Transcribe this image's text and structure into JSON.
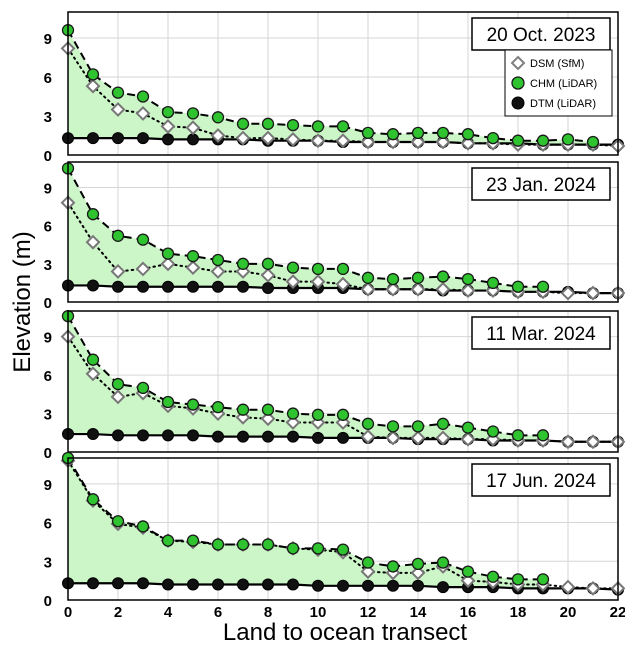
{
  "figure": {
    "ylabel": "Elevation (m)",
    "xlabel": "Land to ocean transect",
    "fill_color": "#ccf5c8",
    "grid_color": "#d6d6d6"
  },
  "legend": [
    {
      "name": "DSM (SfM)",
      "marker": "open-diamond",
      "color": "#808080"
    },
    {
      "name": "CHM (LiDAR)",
      "marker": "green-circle",
      "color": "#2fc42f"
    },
    {
      "name": "DTM (LiDAR)",
      "marker": "black-circle",
      "color": "#000000"
    }
  ],
  "chart_data": [
    {
      "type": "line",
      "date_label": "20 Oct. 2023",
      "xlim": [
        0,
        22
      ],
      "ylim": [
        0,
        11
      ],
      "x_ticks": [
        0,
        2,
        4,
        6,
        8,
        10,
        12,
        14,
        16,
        18,
        20,
        22
      ],
      "y_ticks": [
        0,
        3,
        6,
        9
      ],
      "series": [
        {
          "name": "DSM (SfM)",
          "x": [
            0,
            1,
            2,
            3,
            4,
            5,
            6,
            7,
            8,
            9,
            10,
            11,
            12,
            13,
            14,
            15,
            16,
            17,
            18,
            19,
            20,
            21,
            22
          ],
          "values": [
            8.2,
            5.3,
            3.5,
            3.2,
            2.2,
            2.1,
            1.5,
            1.3,
            1.3,
            1.2,
            1.1,
            1.1,
            1.0,
            1.0,
            1.0,
            1.0,
            0.9,
            0.9,
            0.8,
            0.8,
            0.8,
            0.8,
            0.7
          ]
        },
        {
          "name": "CHM (LiDAR)",
          "x": [
            0,
            1,
            2,
            3,
            4,
            5,
            6,
            7,
            8,
            9,
            10,
            11,
            12,
            13,
            14,
            15,
            16,
            17,
            18,
            19,
            20,
            21
          ],
          "values": [
            9.6,
            6.2,
            4.8,
            4.5,
            3.3,
            3.2,
            2.9,
            2.4,
            2.4,
            2.3,
            2.2,
            2.2,
            1.7,
            1.6,
            1.7,
            1.7,
            1.6,
            1.3,
            1.1,
            1.1,
            1.2,
            1.0
          ]
        },
        {
          "name": "DTM (LiDAR)",
          "x": [
            0,
            1,
            2,
            3,
            4,
            5,
            6,
            7,
            8,
            9,
            10,
            11,
            12,
            13,
            14,
            15,
            16,
            17,
            18,
            19,
            20,
            21,
            22
          ],
          "values": [
            1.3,
            1.3,
            1.3,
            1.3,
            1.2,
            1.2,
            1.2,
            1.2,
            1.1,
            1.1,
            1.1,
            1.0,
            1.0,
            1.0,
            1.0,
            1.0,
            0.9,
            0.9,
            0.9,
            0.8,
            0.8,
            0.8,
            0.8
          ]
        }
      ]
    },
    {
      "type": "line",
      "date_label": "23 Jan. 2024",
      "xlim": [
        0,
        22
      ],
      "ylim": [
        0,
        11
      ],
      "x_ticks": [
        0,
        2,
        4,
        6,
        8,
        10,
        12,
        14,
        16,
        18,
        20,
        22
      ],
      "y_ticks": [
        0,
        3,
        6,
        9
      ],
      "series": [
        {
          "name": "DSM (SfM)",
          "x": [
            0,
            1,
            2,
            3,
            4,
            5,
            6,
            7,
            8,
            9,
            10,
            11,
            12,
            13,
            14,
            15,
            16,
            17,
            18,
            19,
            20,
            21,
            22
          ],
          "values": [
            7.8,
            4.7,
            2.4,
            2.6,
            3.0,
            2.7,
            2.4,
            2.4,
            2.1,
            1.6,
            1.6,
            1.4,
            1.0,
            1.0,
            1.0,
            1.0,
            0.9,
            0.9,
            0.8,
            0.8,
            0.7,
            0.7,
            0.7
          ]
        },
        {
          "name": "CHM (LiDAR)",
          "x": [
            0,
            1,
            2,
            3,
            4,
            5,
            6,
            7,
            8,
            9,
            10,
            11,
            12,
            13,
            14,
            15,
            16,
            17,
            18,
            19
          ],
          "values": [
            10.5,
            6.9,
            5.2,
            4.9,
            3.8,
            3.6,
            3.3,
            3.0,
            3.0,
            2.7,
            2.6,
            2.6,
            1.9,
            1.8,
            1.9,
            2.0,
            1.8,
            1.5,
            1.2,
            1.2
          ]
        },
        {
          "name": "DTM (LiDAR)",
          "x": [
            0,
            1,
            2,
            3,
            4,
            5,
            6,
            7,
            8,
            9,
            10,
            11,
            12,
            13,
            14,
            15,
            16,
            17,
            18,
            19,
            20,
            21,
            22
          ],
          "values": [
            1.3,
            1.3,
            1.2,
            1.2,
            1.2,
            1.2,
            1.2,
            1.2,
            1.1,
            1.1,
            1.1,
            1.1,
            1.0,
            1.0,
            1.0,
            0.9,
            0.9,
            0.9,
            0.8,
            0.8,
            0.8,
            0.7,
            0.7
          ]
        }
      ]
    },
    {
      "type": "line",
      "date_label": "11 Mar. 2024",
      "xlim": [
        0,
        22
      ],
      "ylim": [
        0,
        11
      ],
      "x_ticks": [
        0,
        2,
        4,
        6,
        8,
        10,
        12,
        14,
        16,
        18,
        20,
        22
      ],
      "y_ticks": [
        0,
        3,
        6,
        9
      ],
      "series": [
        {
          "name": "DSM (SfM)",
          "x": [
            0,
            1,
            2,
            3,
            4,
            5,
            6,
            7,
            8,
            9,
            10,
            11,
            12,
            13,
            14,
            15,
            16,
            17,
            18,
            19,
            20,
            21,
            22
          ],
          "values": [
            9.0,
            6.1,
            4.3,
            4.6,
            3.6,
            3.4,
            3.0,
            2.7,
            2.6,
            2.3,
            2.3,
            2.3,
            1.2,
            1.1,
            1.1,
            1.1,
            1.0,
            1.0,
            0.9,
            0.9,
            0.8,
            0.8,
            0.8
          ]
        },
        {
          "name": "CHM (LiDAR)",
          "x": [
            0,
            1,
            2,
            3,
            4,
            5,
            6,
            7,
            8,
            9,
            10,
            11,
            12,
            13,
            14,
            15,
            16,
            17,
            18,
            19
          ],
          "values": [
            10.6,
            7.2,
            5.3,
            5.0,
            3.9,
            3.7,
            3.5,
            3.3,
            3.3,
            3.0,
            2.9,
            2.9,
            2.2,
            2.0,
            2.0,
            2.2,
            1.9,
            1.6,
            1.3,
            1.3
          ]
        },
        {
          "name": "DTM (LiDAR)",
          "x": [
            0,
            1,
            2,
            3,
            4,
            5,
            6,
            7,
            8,
            9,
            10,
            11,
            12,
            13,
            14,
            15,
            16,
            17,
            18,
            19,
            20,
            21,
            22
          ],
          "values": [
            1.4,
            1.4,
            1.3,
            1.3,
            1.3,
            1.3,
            1.2,
            1.2,
            1.2,
            1.2,
            1.1,
            1.1,
            1.1,
            1.1,
            1.0,
            1.0,
            1.0,
            0.9,
            0.9,
            0.9,
            0.8,
            0.8,
            0.8
          ]
        }
      ]
    },
    {
      "type": "line",
      "date_label": "17 Jun. 2024",
      "xlim": [
        0,
        22
      ],
      "ylim": [
        0,
        11
      ],
      "x_ticks": [
        0,
        2,
        4,
        6,
        8,
        10,
        12,
        14,
        16,
        18,
        20,
        22
      ],
      "y_ticks": [
        0,
        3,
        6,
        9
      ],
      "series": [
        {
          "name": "DSM (SfM)",
          "x": [
            0,
            1,
            2,
            3,
            4,
            5,
            6,
            7,
            8,
            9,
            10,
            11,
            12,
            13,
            14,
            15,
            16,
            17,
            18,
            19,
            20,
            21,
            22
          ],
          "values": [
            10.8,
            7.7,
            5.9,
            5.6,
            4.6,
            4.5,
            4.3,
            4.3,
            4.3,
            4.0,
            3.9,
            3.7,
            2.2,
            2.1,
            2.1,
            2.6,
            1.5,
            1.4,
            1.2,
            1.2,
            1.0,
            0.9,
            0.9
          ]
        },
        {
          "name": "CHM (LiDAR)",
          "x": [
            0,
            1,
            2,
            3,
            4,
            5,
            6,
            7,
            8,
            9,
            10,
            11,
            12,
            13,
            14,
            15,
            16,
            17,
            18,
            19
          ],
          "values": [
            11.0,
            7.8,
            6.1,
            5.7,
            4.6,
            4.6,
            4.3,
            4.3,
            4.3,
            4.0,
            4.0,
            3.9,
            2.9,
            2.6,
            2.8,
            2.9,
            2.2,
            1.8,
            1.6,
            1.6
          ]
        },
        {
          "name": "DTM (LiDAR)",
          "x": [
            0,
            1,
            2,
            3,
            4,
            5,
            6,
            7,
            8,
            9,
            10,
            11,
            12,
            13,
            14,
            15,
            16,
            17,
            18,
            19,
            20,
            21,
            22
          ],
          "values": [
            1.3,
            1.3,
            1.3,
            1.3,
            1.2,
            1.2,
            1.2,
            1.2,
            1.2,
            1.2,
            1.1,
            1.1,
            1.1,
            1.1,
            1.1,
            1.0,
            1.0,
            1.0,
            0.9,
            0.9,
            0.9,
            0.9,
            0.8
          ]
        }
      ]
    }
  ]
}
